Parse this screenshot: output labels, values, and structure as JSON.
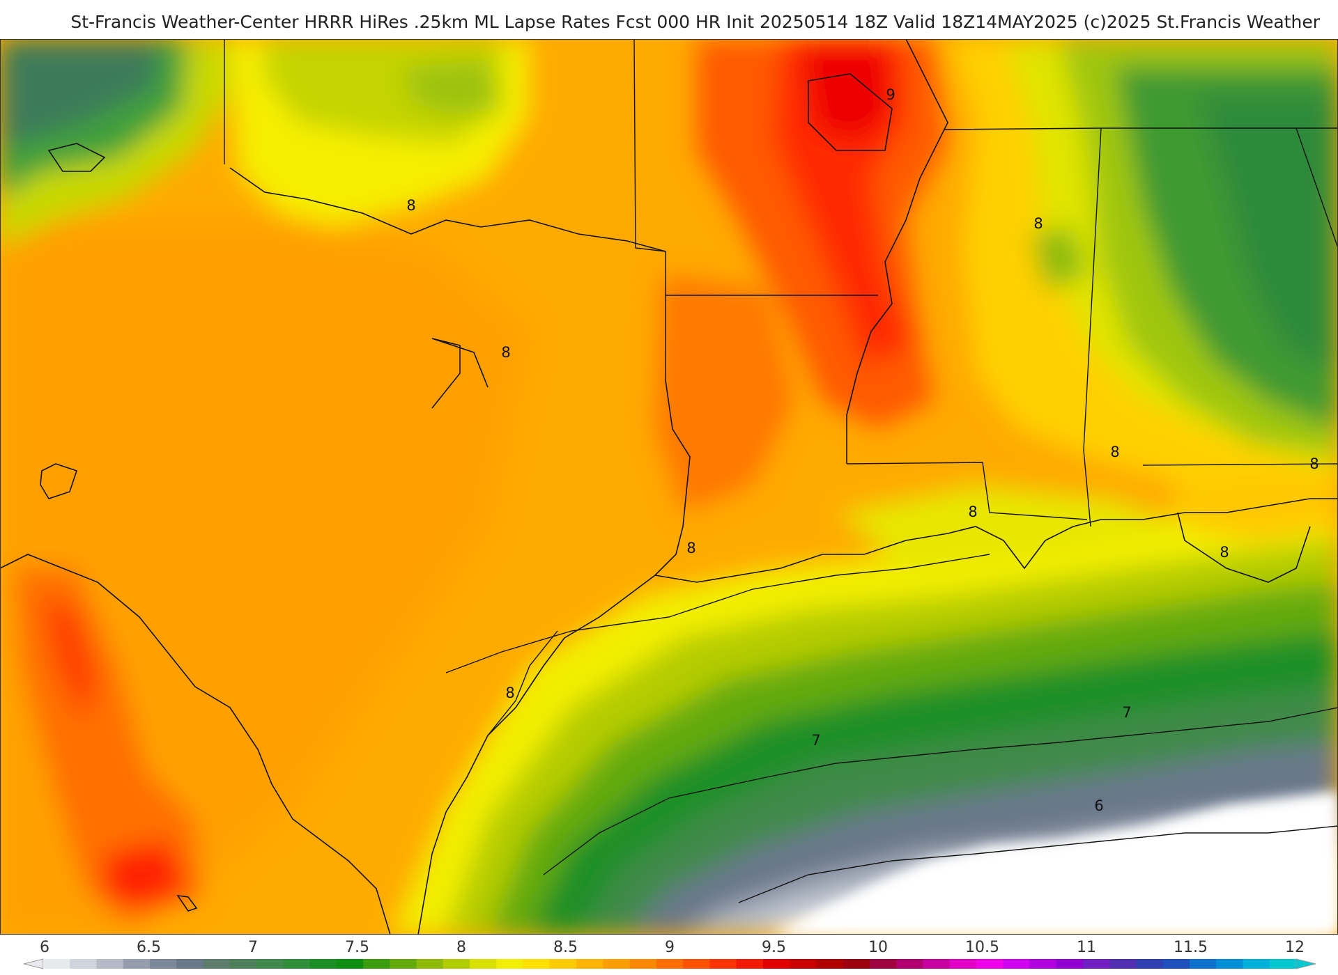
{
  "header": {
    "title": "St-Francis Weather-Center HRRR HiRes .25km ML Lapse Rates  Fcst 000 HR Init 20250514 18Z  Valid 18Z14MAY2025    (c)2025 St.Francis Weather"
  },
  "contour_labels": [
    {
      "text": "9",
      "value": 9
    },
    {
      "text": "8",
      "value": 8
    },
    {
      "text": "8",
      "value": 8
    },
    {
      "text": "8",
      "value": 8
    },
    {
      "text": "8",
      "value": 8
    },
    {
      "text": "8",
      "value": 8
    },
    {
      "text": "8",
      "value": 8
    },
    {
      "text": "8",
      "value": 8
    },
    {
      "text": "8",
      "value": 8
    },
    {
      "text": "8",
      "value": 8
    },
    {
      "text": "7",
      "value": 7
    },
    {
      "text": "7",
      "value": 7
    },
    {
      "text": "6",
      "value": 6
    }
  ],
  "legend": {
    "ticks": [
      "6",
      "6.5",
      "7",
      "7.5",
      "8",
      "8.5",
      "9",
      "9.5",
      "10",
      "10.5",
      "11",
      "11.5",
      "12"
    ],
    "colors": [
      "#e8eaee",
      "#d0d4dc",
      "#b4bac6",
      "#969eae",
      "#7d879a",
      "#69788a",
      "#5c7c6c",
      "#4c7f5a",
      "#3f8a4a",
      "#2f8f3a",
      "#1e8f25",
      "#0f8f12",
      "#3a9c10",
      "#63aa0c",
      "#8dbb08",
      "#b4cc04",
      "#d8e000",
      "#f2ee00",
      "#ffe000",
      "#ffca00",
      "#ffb400",
      "#ff9e00",
      "#ff8800",
      "#ff6e00",
      "#ff5200",
      "#ff3400",
      "#f21a00",
      "#e00000",
      "#c80000",
      "#b00000",
      "#9c0010",
      "#a00040",
      "#b00070",
      "#c800a0",
      "#e000c8",
      "#f000e8",
      "#d000f0",
      "#b000e0",
      "#9000d0",
      "#7020c0",
      "#5030b0",
      "#3040b0",
      "#2050c0",
      "#1070d0",
      "#0090d8",
      "#00b0d8",
      "#00c8d0"
    ]
  }
}
